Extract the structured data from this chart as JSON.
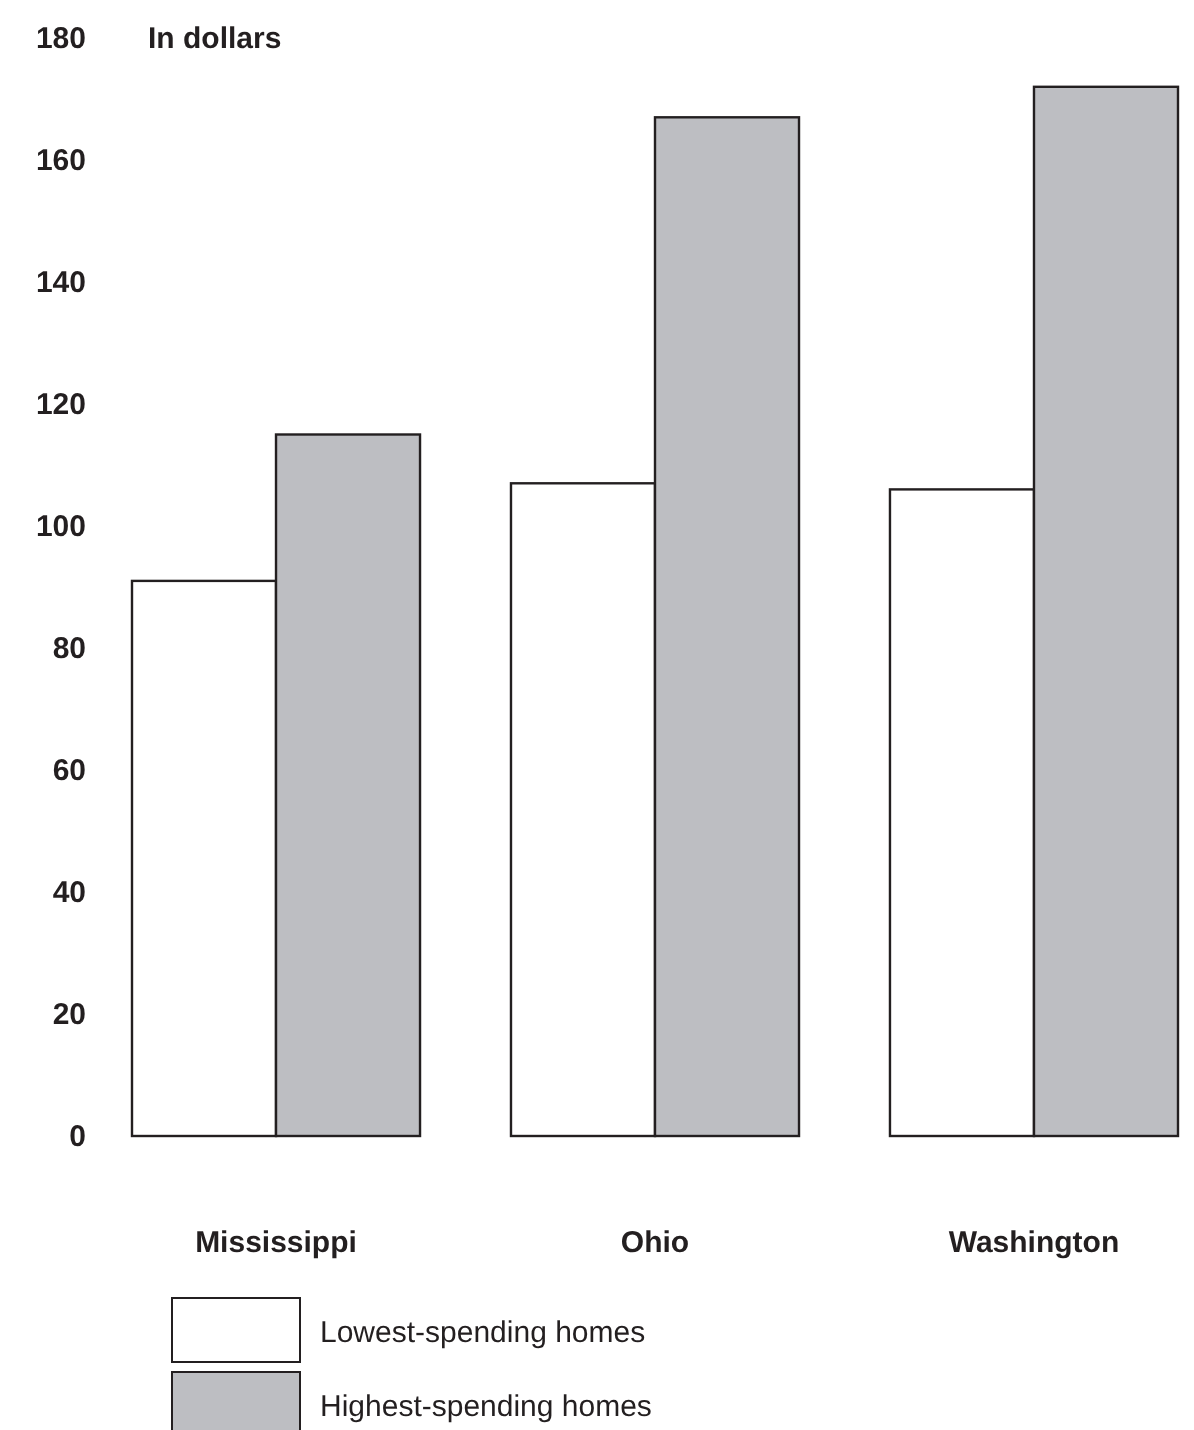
{
  "chart_data": {
    "type": "bar",
    "ylabel": "In dollars",
    "categories": [
      "Mississippi",
      "Ohio",
      "Washington"
    ],
    "series": [
      {
        "name": "Lowest-spending homes",
        "color": "#ffffff",
        "values": [
          91,
          107,
          106
        ]
      },
      {
        "name": "Highest-spending homes",
        "color": "#bdbec2",
        "values": [
          115,
          167,
          172
        ]
      }
    ],
    "ylim": [
      0,
      180
    ],
    "yticks": [
      0,
      20,
      40,
      60,
      80,
      100,
      120,
      140,
      160,
      180
    ],
    "grid": false,
    "legend": "bottom"
  }
}
